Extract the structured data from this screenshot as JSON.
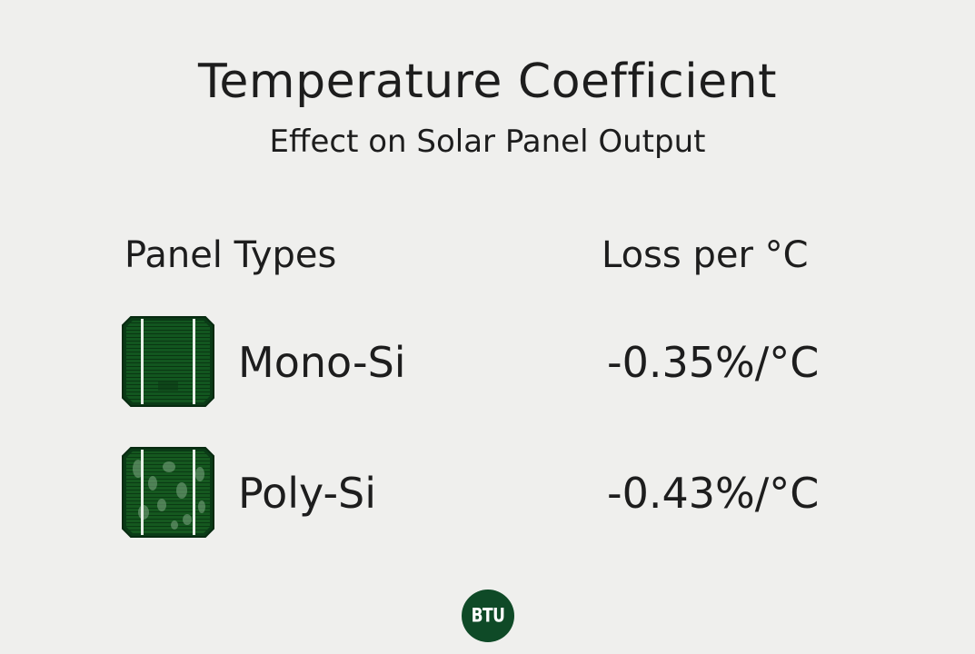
{
  "header": {
    "title": "Temperature Coefficient",
    "subtitle": "Effect on Solar Panel Output"
  },
  "table": {
    "columns": [
      "Panel Types",
      "Loss per °C"
    ],
    "rows": [
      {
        "icon": "mono-si-cell-icon",
        "name": "Mono-Si",
        "loss": "-0.35%/°C"
      },
      {
        "icon": "poly-si-cell-icon",
        "name": "Poly-Si",
        "loss": "-0.43%/°C"
      }
    ]
  },
  "logo": {
    "text": "BTU",
    "color": "#0f4a27"
  },
  "colors": {
    "background": "#efefed",
    "text": "#1d1d1d",
    "cell_green": "#0d4a1f"
  }
}
